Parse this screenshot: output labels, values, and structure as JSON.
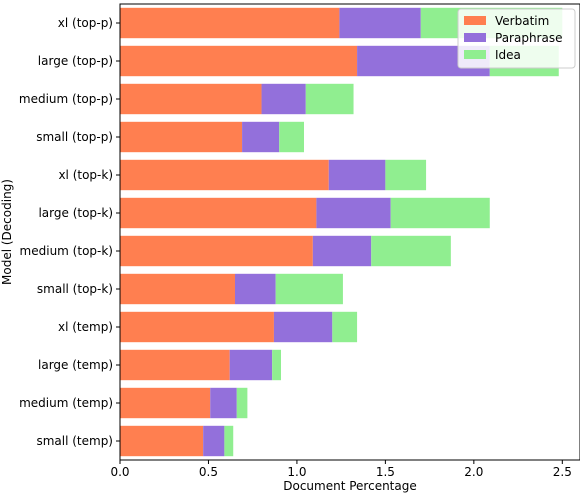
{
  "chart_data": {
    "type": "bar",
    "orientation": "horizontal",
    "stacked": true,
    "categories": [
      "xl (top-p)",
      "large (top-p)",
      "medium (top-p)",
      "small (top-p)",
      "xl (top-k)",
      "large (top-k)",
      "medium (top-k)",
      "small (top-k)",
      "xl (temp)",
      "large (temp)",
      "medium (temp)",
      "small (temp)"
    ],
    "series": [
      {
        "name": "Verbatim",
        "color": "#ff7f50",
        "values": [
          1.24,
          1.34,
          0.8,
          0.69,
          1.18,
          1.11,
          1.09,
          0.65,
          0.87,
          0.62,
          0.51,
          0.47
        ]
      },
      {
        "name": "Paraphrase",
        "color": "#9370db",
        "values": [
          0.46,
          0.75,
          0.25,
          0.21,
          0.32,
          0.42,
          0.33,
          0.23,
          0.33,
          0.24,
          0.15,
          0.12
        ]
      },
      {
        "name": "Idea",
        "color": "#90ee90",
        "values": [
          0.8,
          0.39,
          0.27,
          0.14,
          0.23,
          0.56,
          0.45,
          0.38,
          0.14,
          0.05,
          0.06,
          0.05
        ]
      }
    ],
    "xlabel": "Document Percentage",
    "ylabel": "Model (Decoding)",
    "xlim": [
      0,
      2.6
    ],
    "xticks": [
      "0.0",
      "0.5",
      "1.0",
      "1.5",
      "2.0",
      "2.5"
    ],
    "grid": false,
    "legend_position": "top-right"
  }
}
